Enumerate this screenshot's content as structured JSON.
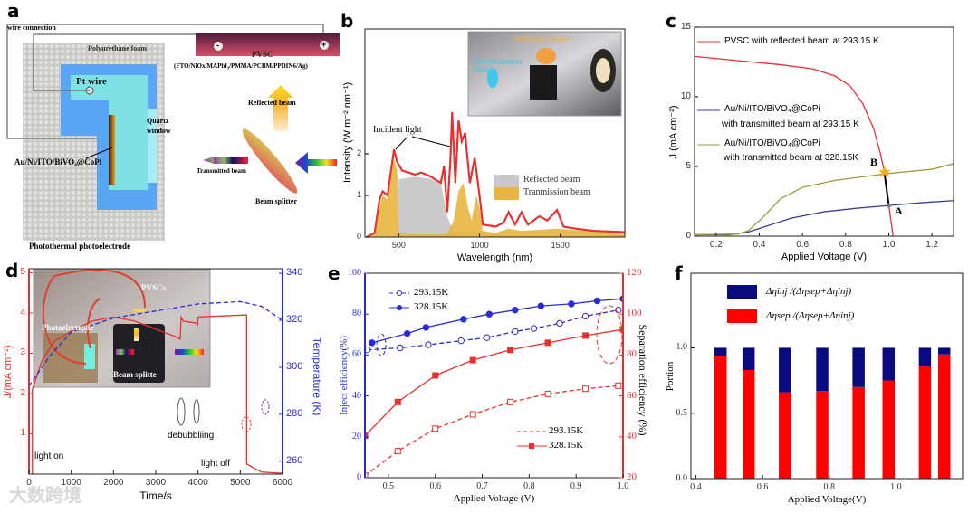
{
  "panel_labels": [
    "a",
    "b",
    "c",
    "d",
    "e",
    "f"
  ],
  "panel_a": {
    "wire_connection": "wire connection",
    "foam": "Polyurethane foam",
    "pt_wire": "Pt wire",
    "quartz": "Quartz",
    "window": "window",
    "electrode": "Au/Ni/ITO/BiVO₄@CoPi",
    "caption": "Photothermal photoelectrode",
    "pvsc": "PVSC",
    "pvsc_stack": "(FTO/NiOx/MAPbI₃/PMMA/PCBM/PPDIN6/Ag)",
    "minus": "-",
    "plus": "+",
    "reflected": "Reflected beam",
    "transmitted": "Transmitted beam",
    "splitter": "Beam splitter"
  },
  "panel_b_inset": {
    "reflected": "Reflected beam",
    "transmission": "Transmission beam"
  },
  "panel_d_inset": {
    "pvscs": "PVSCs",
    "photoelectrode": "Photoelectrode",
    "splitter": "Beam splitte"
  },
  "watermark": "大数跨境",
  "chart_data": [
    {
      "id": "b",
      "type": "area",
      "xlabel": "Wavelength (nm)",
      "ylabel": "Intensity (W m⁻² nm⁻¹)",
      "xlim": [
        290,
        1900
      ],
      "ylim": [
        0,
        5
      ],
      "xticks": [
        500,
        1000,
        1500
      ],
      "yticks": [
        0,
        1,
        2
      ],
      "annotation": "Incident light",
      "legend": [
        "Reflected beam",
        "Tranmission beam"
      ],
      "series": [
        {
          "name": "Incident light",
          "color": "#e8302e",
          "x": [
            300,
            350,
            380,
            400,
            430,
            470,
            490,
            520,
            560,
            600,
            640,
            700,
            760,
            780,
            800,
            820,
            830,
            850,
            870,
            890,
            910,
            940,
            970,
            1000,
            1020,
            1100,
            1150,
            1180,
            1220,
            1260,
            1300,
            1370,
            1420,
            1480,
            1520,
            1600,
            1700,
            1900
          ],
          "y": [
            0,
            0.1,
            0.9,
            1.1,
            1.0,
            2.1,
            1.8,
            1.6,
            1.55,
            1.5,
            1.55,
            1.45,
            1.3,
            1.7,
            0.6,
            1.9,
            3.0,
            1.3,
            2.8,
            2.3,
            2.5,
            1.3,
            1.9,
            1.0,
            0.3,
            0.25,
            0.35,
            0.6,
            0.3,
            0.6,
            0.3,
            0.5,
            0.4,
            0.65,
            0.25,
            0.2,
            0.15,
            0.12
          ]
        },
        {
          "name": "Reflected beam",
          "color": "#c8c8c8",
          "x": [
            490,
            500,
            520,
            600,
            700,
            760,
            800,
            820,
            840,
            1000,
            1020,
            1900
          ],
          "y": [
            0,
            1.4,
            1.4,
            1.45,
            1.4,
            1.3,
            0.5,
            0.3,
            0.1,
            0.1,
            0.05,
            0.05
          ]
        },
        {
          "name": "Tranmission beam",
          "color": "#e8b640",
          "x": [
            300,
            350,
            380,
            400,
            430,
            470,
            490,
            500,
            520,
            700,
            800,
            840,
            870,
            900,
            930,
            950,
            980,
            1000,
            1020,
            1100,
            1180,
            1260,
            1480,
            1900
          ],
          "y": [
            0,
            0.1,
            0.8,
            1.0,
            0.9,
            1.9,
            1.6,
            0.1,
            0.08,
            0.06,
            0.08,
            0.4,
            1.1,
            1.3,
            0.7,
            0.4,
            1.0,
            0.7,
            0.15,
            0.1,
            0.2,
            0.15,
            0.2,
            0.08
          ]
        }
      ]
    },
    {
      "id": "c",
      "type": "line",
      "xlabel": "Applied Voltage (V)",
      "ylabel": "J (mA cm⁻²)",
      "xlim": [
        0.1,
        1.3
      ],
      "ylim": [
        0,
        15
      ],
      "xticks": [
        0.2,
        0.4,
        0.6,
        0.8,
        1.0,
        1.2
      ],
      "yticks": [
        0,
        5,
        10,
        15
      ],
      "points": {
        "A": "A",
        "B": "B"
      },
      "series": [
        {
          "name": "PVSC with reflected beam at 293.15 K",
          "color": "#e8302e",
          "x": [
            0.1,
            0.3,
            0.5,
            0.65,
            0.75,
            0.82,
            0.88,
            0.93,
            0.96,
            0.98,
            1.0,
            1.02
          ],
          "y": [
            12.9,
            12.6,
            12.3,
            12.0,
            11.5,
            10.8,
            9.5,
            7.7,
            6.0,
            4.6,
            2.2,
            0
          ]
        },
        {
          "name": "Au/Ni/ITO/BiVO₄@CoPi",
          "name2": "with transmitted beam at 293.15 K",
          "color": "#3c3c96",
          "x": [
            0.1,
            0.26,
            0.35,
            0.45,
            0.55,
            0.7,
            0.85,
            1.0,
            1.15,
            1.3
          ],
          "y": [
            0.1,
            0.1,
            0.3,
            0.8,
            1.3,
            1.75,
            2.0,
            2.2,
            2.4,
            2.55
          ]
        },
        {
          "name": "Au/Ni/ITO/BiVO₄@CoPi",
          "name2": "with transmitted beam at 328.15K",
          "color": "#9a9a3a",
          "x": [
            0.1,
            0.3,
            0.35,
            0.42,
            0.5,
            0.6,
            0.75,
            0.9,
            1.0,
            1.2,
            1.3
          ],
          "y": [
            0.1,
            0.15,
            0.4,
            1.4,
            2.7,
            3.5,
            4.0,
            4.3,
            4.5,
            4.8,
            5.2
          ]
        }
      ]
    },
    {
      "id": "d",
      "type": "line",
      "xlabel": "Time/s",
      "ylabel": "J/(mA cm⁻²)",
      "y2label": "Temperature (K)",
      "xlim": [
        0,
        6000
      ],
      "ylim": [
        0,
        5.1
      ],
      "y2lim": [
        254.5,
        342
      ],
      "xticks": [
        0,
        1000,
        2000,
        3000,
        4000,
        5000,
        6000
      ],
      "yticks": [
        1,
        2,
        3,
        4,
        5
      ],
      "y2ticks": [
        260,
        280,
        300,
        320,
        340
      ],
      "annotations": [
        "light on",
        "debubbliing",
        "light off"
      ],
      "series": [
        {
          "name": "J",
          "axis": "left",
          "color": "#e8302e",
          "x": [
            80,
            80,
            300,
            600,
            1000,
            1500,
            2000,
            2500,
            3000,
            3500,
            3580,
            3600,
            3650,
            3950,
            3990,
            4000,
            5100,
            5150,
            5150,
            5500,
            6000
          ],
          "y": [
            0,
            2.1,
            2.8,
            3.3,
            3.55,
            3.8,
            3.9,
            3.8,
            3.6,
            3.4,
            3.35,
            3.9,
            3.8,
            3.75,
            3.7,
            3.9,
            3.95,
            3.95,
            0.25,
            0.05,
            0.02
          ]
        },
        {
          "name": "Temperature",
          "axis": "right",
          "color": "#2b2bd6",
          "dashed": true,
          "x": [
            0,
            500,
            1000,
            2000,
            3000,
            4000,
            5000,
            5500,
            6000
          ],
          "y": [
            292,
            305,
            315,
            321,
            324,
            327,
            328,
            326,
            320
          ]
        }
      ]
    },
    {
      "id": "e",
      "type": "line",
      "xlabel": "Applied Voltage (V)",
      "ylabel": "Inject efficiency(%)",
      "y2label": "Separation efficiency (%)",
      "xlim": [
        0.45,
        1.0
      ],
      "ylim": [
        0,
        100
      ],
      "y2lim": [
        20,
        120
      ],
      "xticks": [
        0.5,
        0.6,
        0.7,
        0.8,
        0.9,
        1.0
      ],
      "yticks": [
        0,
        20,
        40,
        60,
        80,
        100
      ],
      "y2ticks": [
        20,
        40,
        60,
        80,
        100,
        120
      ],
      "series": [
        {
          "name": "293.15K",
          "axis": "left",
          "color": "#2b2bd6",
          "dashed": true,
          "marker": "open-circle",
          "x": [
            0.455,
            0.525,
            0.585,
            0.655,
            0.71,
            0.77,
            0.81,
            0.865,
            0.92,
            0.99
          ],
          "y": [
            62.5,
            63.5,
            65,
            67,
            68.5,
            71.5,
            73,
            75.5,
            79,
            82
          ]
        },
        {
          "name": "328.15K",
          "axis": "left",
          "color": "#2b2bd6",
          "marker": "filled-circle",
          "x": [
            0.465,
            0.54,
            0.58,
            0.66,
            0.715,
            0.77,
            0.825,
            0.89,
            0.945,
            1.0
          ],
          "y": [
            66,
            70.5,
            73.5,
            77.5,
            80,
            82,
            84,
            85,
            86.5,
            87.5
          ]
        },
        {
          "name": "293.15K",
          "axis": "right",
          "color": "#e8302e",
          "dashed": true,
          "marker": "open-square",
          "x": [
            0.45,
            0.52,
            0.6,
            0.68,
            0.76,
            0.84,
            0.92,
            0.99
          ],
          "y": [
            21,
            33,
            44,
            51,
            57,
            61,
            63.5,
            65
          ]
        },
        {
          "name": "328.15K",
          "axis": "right",
          "color": "#e8302e",
          "marker": "filled-square",
          "x": [
            0.45,
            0.52,
            0.6,
            0.68,
            0.76,
            0.84,
            0.92,
            1.0
          ],
          "y": [
            40.5,
            57,
            70,
            77.5,
            82.5,
            86,
            89.5,
            92.5
          ]
        }
      ]
    },
    {
      "id": "f",
      "type": "bar",
      "xlabel": "Applied Voltage(V)",
      "ylabel": "Portion",
      "xlim": [
        0.385,
        1.2
      ],
      "ylim": [
        0,
        1.57
      ],
      "xticks": [
        0.4,
        0.6,
        0.8,
        1.0
      ],
      "yticks": [
        0.0,
        0.5,
        1.0
      ],
      "x": [
        0.474,
        0.558,
        0.667,
        0.779,
        0.888,
        0.978,
        1.087,
        1.145
      ],
      "series": [
        {
          "name": "Δηsep /(Δηsep+Δηinj)",
          "color": "#ff0000",
          "values": [
            0.94,
            0.83,
            0.66,
            0.67,
            0.7,
            0.75,
            0.86,
            0.95
          ]
        },
        {
          "name": "Δηinj /(Δηsep+Δηinj)",
          "color": "#0a0a80",
          "values": [
            0.06,
            0.17,
            0.34,
            0.33,
            0.3,
            0.25,
            0.14,
            0.05
          ]
        }
      ]
    }
  ]
}
